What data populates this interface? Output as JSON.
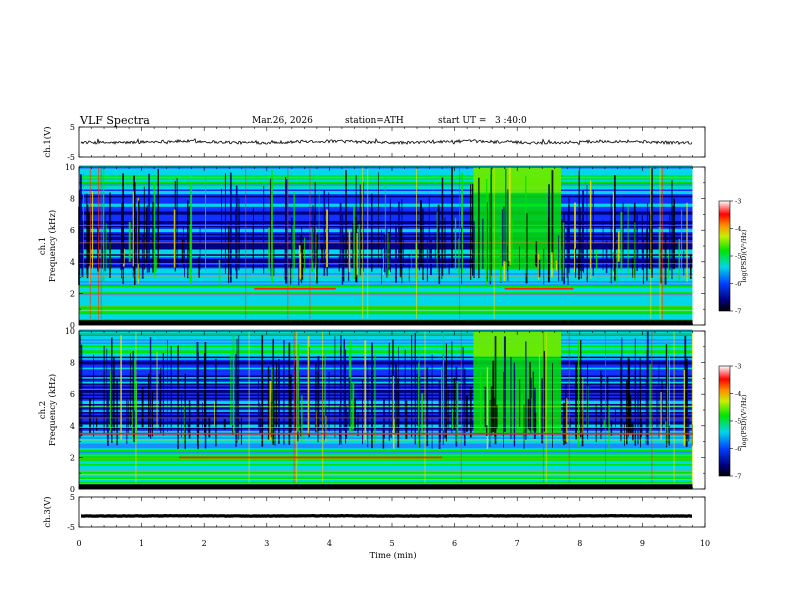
{
  "header": {
    "title": "VLF Spectra",
    "date": "Mar.26, 2026",
    "station": "station=ATH",
    "start_ut": "start UT =   3 :40:0"
  },
  "chart_data": [
    {
      "type": "line",
      "panel": "ch1-waveform",
      "ylabel": "ch.1(V)",
      "ylim": [
        -5,
        5
      ],
      "yticks": [
        "5",
        "-5"
      ],
      "xlim": [
        0,
        10
      ],
      "baseline_value": 0,
      "amplitude_approx": 1
    },
    {
      "type": "heatmap",
      "panel": "ch1-spectrogram",
      "ylabel": "ch.1\nFrequency (kHz)",
      "ylim": [
        0,
        10
      ],
      "yticks": [
        "0",
        "2",
        "4",
        "6",
        "8",
        "10"
      ],
      "xlim": [
        0,
        10
      ],
      "data_end_min": 9.8,
      "colorbar": {
        "label": "log(PSD)(V²/Hz)",
        "range": [
          -7,
          -3
        ],
        "ticks": [
          "-3",
          "-4",
          "-5",
          "-6",
          "-7"
        ]
      },
      "features": [
        {
          "kind": "broadband-enhancement",
          "t_start": 6.3,
          "t_end": 7.7,
          "f_low": 3.5,
          "f_high": 10
        },
        {
          "kind": "narrowband-line",
          "f_khz": 2.3,
          "t_start": 2.8,
          "t_end": 4.1
        },
        {
          "kind": "narrowband-line",
          "f_khz": 2.3,
          "t_start": 6.8,
          "t_end": 7.9
        }
      ]
    },
    {
      "type": "heatmap",
      "panel": "ch2-spectrogram",
      "ylabel": "ch.2\nFrequency (kHz)",
      "ylim": [
        0,
        10
      ],
      "yticks": [
        "0",
        "2",
        "4",
        "6",
        "8",
        "10"
      ],
      "xlim": [
        0,
        10
      ],
      "data_end_min": 9.8,
      "colorbar": {
        "label": "log(PSD)(V²/Hz)",
        "range": [
          -7,
          -3
        ],
        "ticks": [
          "-3",
          "-4",
          "-5",
          "-6",
          "-7"
        ]
      },
      "features": [
        {
          "kind": "broadband-enhancement",
          "t_start": 6.3,
          "t_end": 7.7,
          "f_low": 3.5,
          "f_high": 10
        },
        {
          "kind": "narrowband-line",
          "f_khz": 3.5,
          "t_start": 0,
          "t_end": 9.8
        },
        {
          "kind": "narrowband-line",
          "f_khz": 2.0,
          "t_start": 1.6,
          "t_end": 5.8
        }
      ]
    },
    {
      "type": "line",
      "panel": "ch3-waveform",
      "ylabel": "ch.3(V)",
      "ylim": [
        -5,
        5
      ],
      "yticks": [
        "5",
        "-5"
      ],
      "xlim": [
        0,
        10
      ],
      "baseline_value": -1.3,
      "amplitude_approx": 0.15
    }
  ],
  "xaxis": {
    "label": "Time (min)",
    "ticks": [
      "0",
      "1",
      "2",
      "3",
      "4",
      "5",
      "6",
      "7",
      "8",
      "9",
      "10"
    ]
  },
  "colors": {
    "background_low": "#00007e",
    "low": "#1c6cff",
    "mid": "#00e6e6",
    "high": "#00e400",
    "peak": "#ff2400"
  }
}
